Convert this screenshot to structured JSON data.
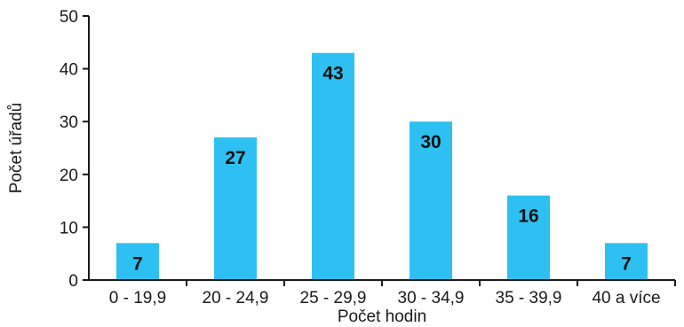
{
  "chart_data": {
    "type": "bar",
    "categories": [
      "0 - 19,9",
      "20 - 24,9",
      "25 - 29,9",
      "30 - 34,9",
      "35 - 39,9",
      "40 a více"
    ],
    "values": [
      7,
      27,
      43,
      30,
      16,
      7
    ],
    "xlabel": "Počet hodin",
    "ylabel": "Počet úřadů",
    "ylim": [
      0,
      50
    ],
    "yticks": [
      0,
      10,
      20,
      30,
      40,
      50
    ],
    "grid": false,
    "legend": "none",
    "bar_color": "#2ec0f2",
    "axis_color": "#1a1a1a"
  }
}
